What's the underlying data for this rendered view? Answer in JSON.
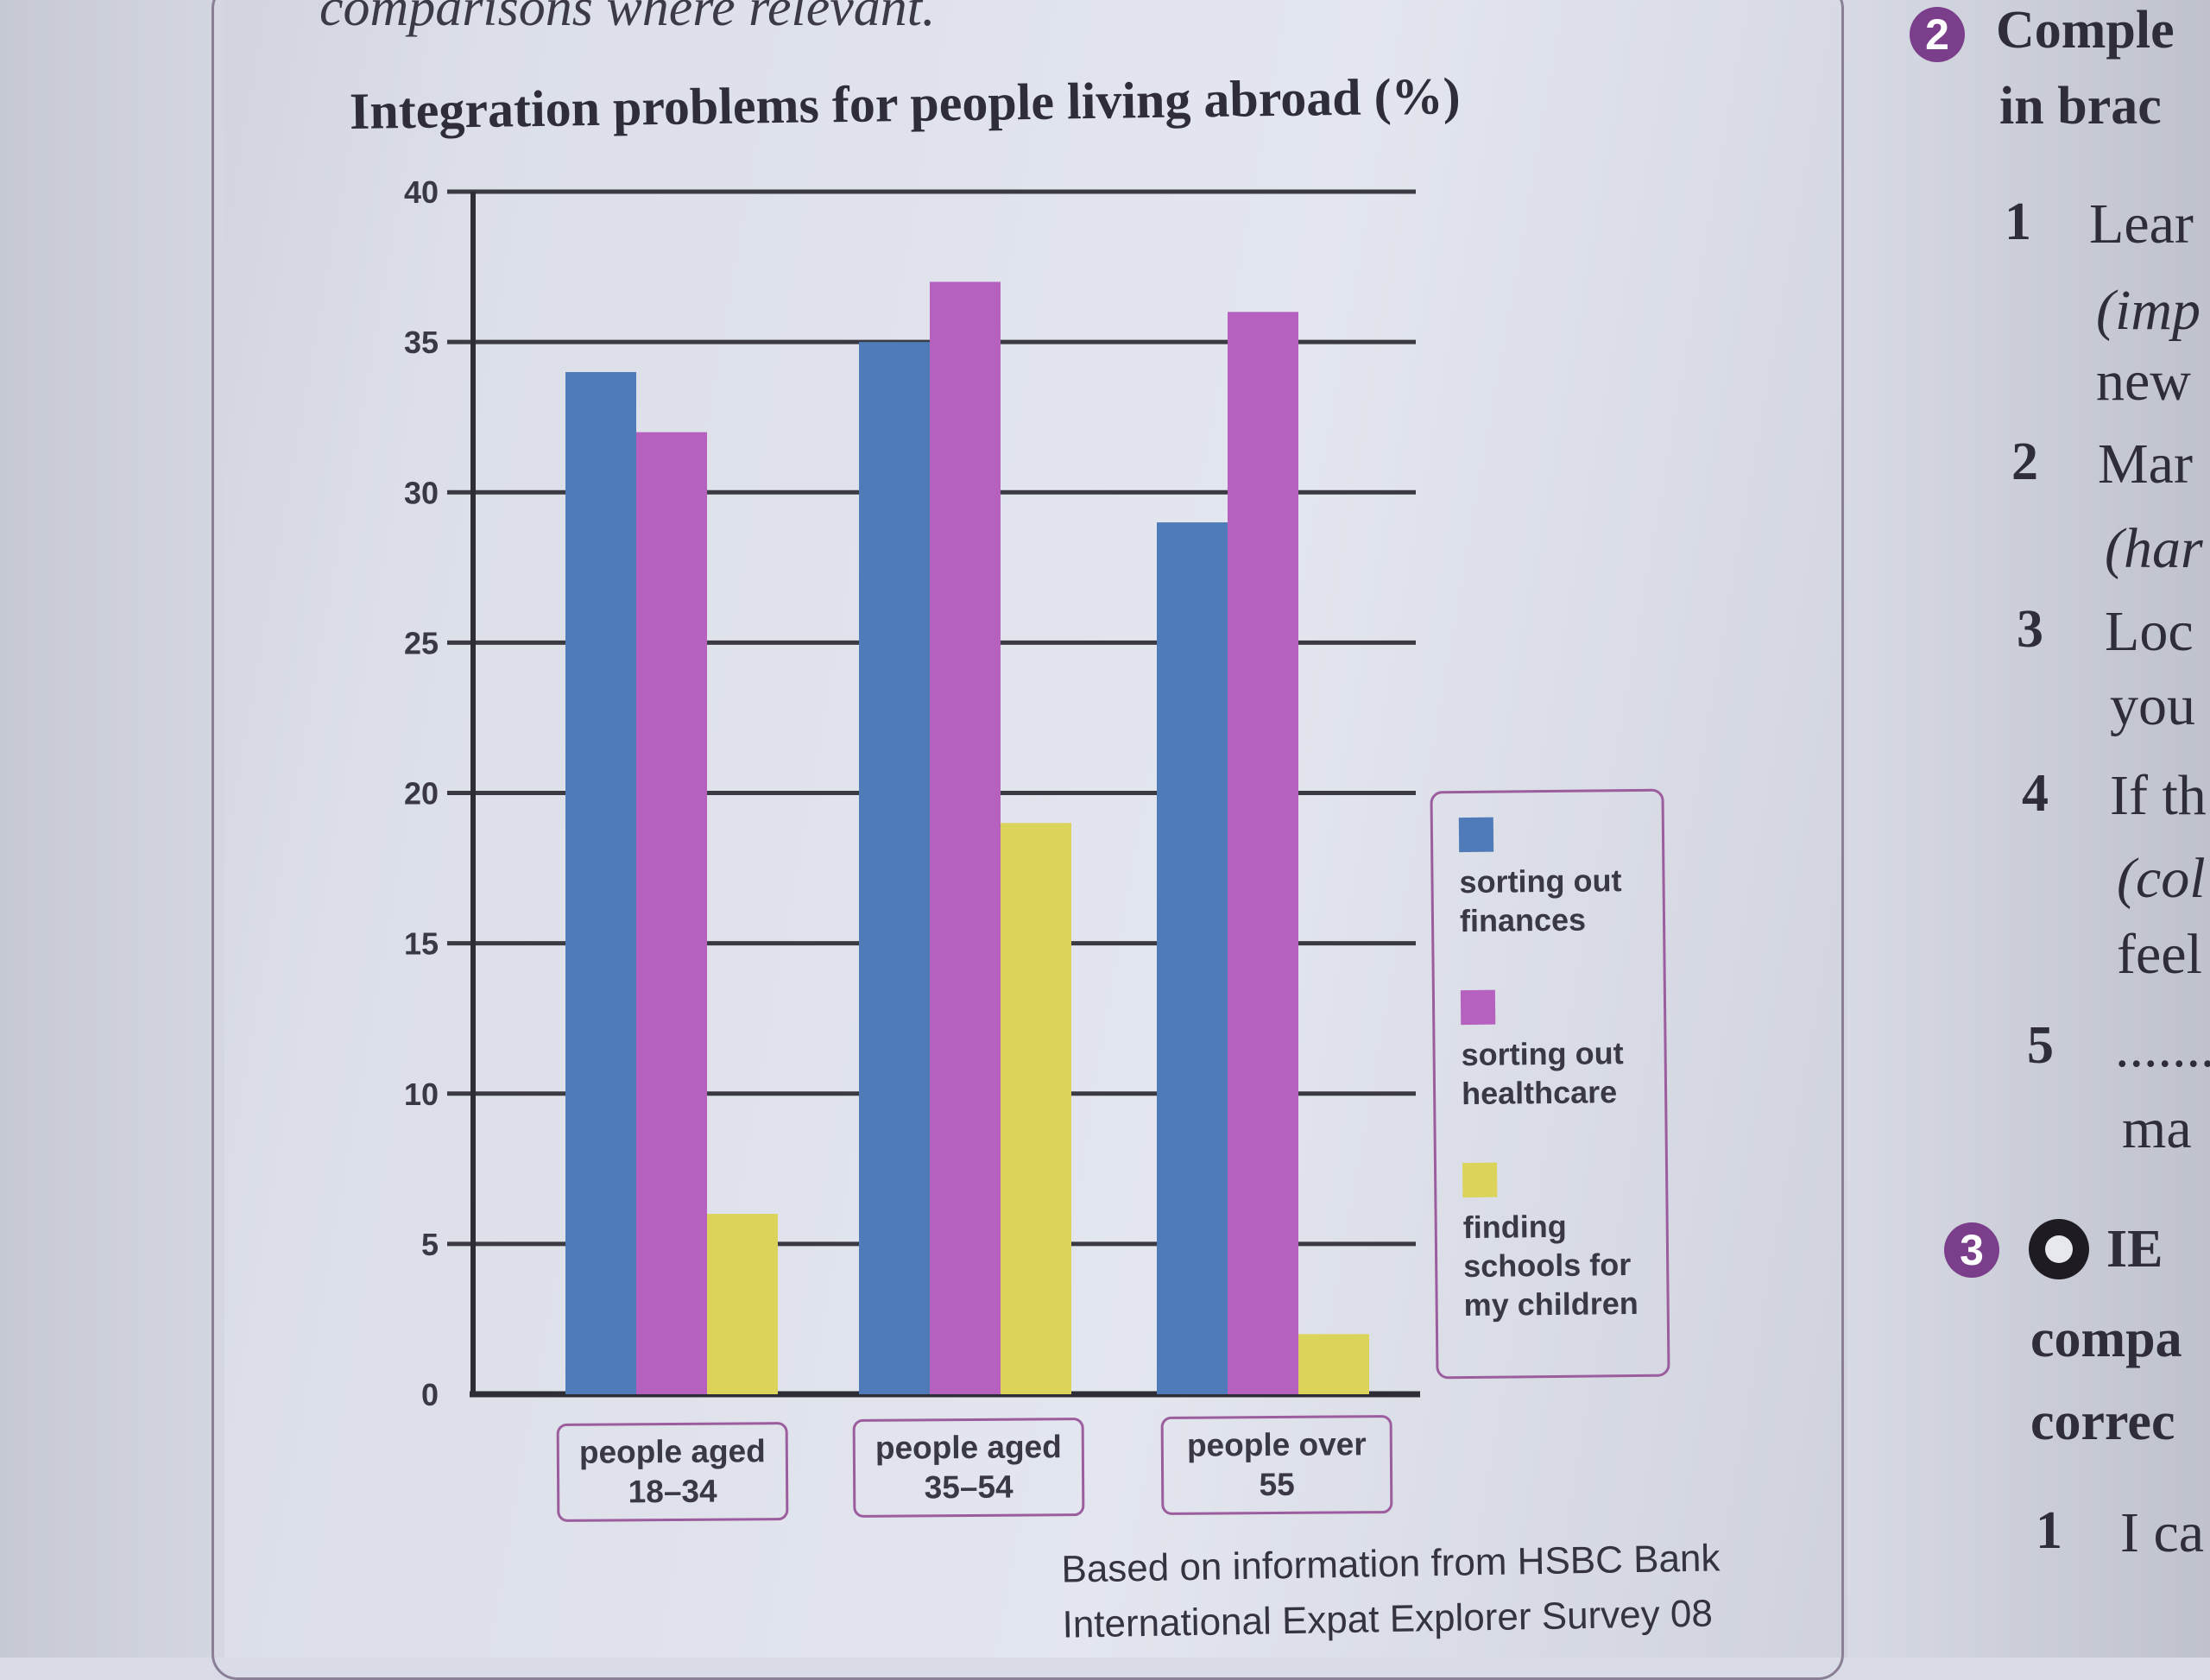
{
  "instruction_fragment": "comparisons where relevant.",
  "chart_data": {
    "type": "bar",
    "title": "Integration problems for people living abroad (%)",
    "categories": [
      "people aged 18–34",
      "people aged 35–54",
      "people over 55"
    ],
    "category_lines": [
      [
        "people aged",
        "18–34"
      ],
      [
        "people aged",
        "35–54"
      ],
      [
        "people over",
        "55"
      ]
    ],
    "series": [
      {
        "name": "sorting out finances",
        "name_lines": [
          "sorting out",
          "finances"
        ],
        "color": "#4f7cb8",
        "values": [
          34,
          35,
          29
        ]
      },
      {
        "name": "sorting out healthcare",
        "name_lines": [
          "sorting out",
          "healthcare"
        ],
        "color": "#b661c0",
        "values": [
          32,
          37,
          36
        ]
      },
      {
        "name": "finding schools for my children",
        "name_lines": [
          "finding",
          "schools for",
          "my children"
        ],
        "color": "#dcd35a",
        "values": [
          6,
          19,
          2
        ]
      }
    ],
    "ylim": [
      0,
      40
    ],
    "yticks": [
      0,
      5,
      10,
      15,
      20,
      25,
      30,
      35,
      40
    ],
    "ytick_labels": [
      "0",
      "5",
      "10",
      "15",
      "20",
      "25",
      "30",
      "35",
      "40"
    ],
    "xlabel": "",
    "ylabel": "",
    "legend_position": "right",
    "grid": true
  },
  "source_lines": [
    "Based on information from HSBC Bank",
    "International Expat Explorer Survey 08"
  ],
  "right_column": {
    "exercise2_badge": "2",
    "exercise2_heading": [
      "Comple",
      "in brac"
    ],
    "items": [
      {
        "num": "1",
        "lines": [
          "Lear",
          "(imp",
          "new"
        ]
      },
      {
        "num": "2",
        "lines": [
          "Mar",
          "(har"
        ]
      },
      {
        "num": "3",
        "lines": [
          "Loc",
          "you"
        ]
      },
      {
        "num": "4",
        "lines": [
          "If th",
          "(col",
          "feel"
        ]
      },
      {
        "num": "5",
        "lines": [
          ".........",
          "ma"
        ]
      }
    ],
    "exercise3_badge": "3",
    "exercise3_heading": [
      "IE",
      "compa",
      "correc"
    ],
    "item_last": {
      "num": "1",
      "text": "I ca"
    }
  }
}
